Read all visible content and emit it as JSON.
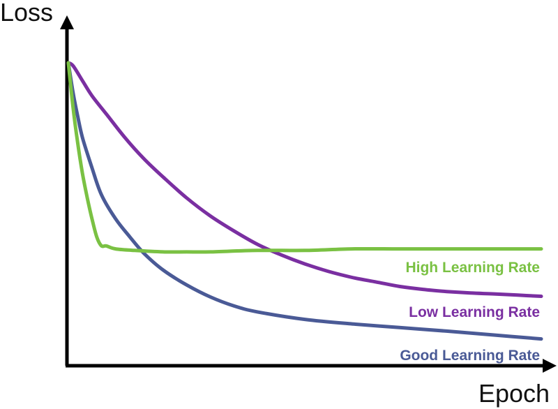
{
  "chart_data": {
    "type": "line",
    "title": "",
    "xlabel": "Epoch",
    "ylabel": "Loss",
    "xlim": [
      0,
      100
    ],
    "ylim": [
      0,
      100
    ],
    "grid": false,
    "axis_ticks": false,
    "series": [
      {
        "name": "High Learning Rate",
        "color": "#7ac143",
        "x": [
          0,
          1,
          2,
          3,
          4,
          5,
          6,
          7,
          8,
          10,
          14,
          20,
          25,
          30,
          40,
          50,
          60,
          70,
          80,
          90,
          100
        ],
        "y": [
          100,
          85,
          73,
          63,
          55,
          48,
          42,
          39,
          39,
          38,
          37.5,
          37,
          37,
          37,
          37.5,
          37.5,
          38,
          38,
          38,
          38,
          38
        ]
      },
      {
        "name": "Low Learning Rate",
        "color": "#7a2fa1",
        "x": [
          0,
          1,
          3,
          5,
          8,
          12,
          16,
          20,
          25,
          30,
          35,
          40,
          45,
          50,
          55,
          60,
          65,
          70,
          75,
          80,
          85,
          90,
          95,
          100
        ],
        "y": [
          100,
          99,
          94,
          89,
          83,
          75,
          68,
          62,
          55,
          49,
          44,
          39.5,
          36,
          33,
          30.5,
          28.5,
          27,
          25.5,
          24.5,
          23.8,
          23.3,
          23,
          22.6,
          22.2
        ]
      },
      {
        "name": "Good Learning Rate",
        "color": "#4a5a96",
        "x": [
          0,
          1,
          2,
          3,
          5,
          7,
          10,
          13,
          16,
          20,
          25,
          30,
          35,
          40,
          50,
          60,
          70,
          80,
          90,
          100
        ],
        "y": [
          100,
          90,
          82,
          75,
          65,
          56,
          48,
          42,
          36.5,
          31,
          26,
          22,
          19,
          17,
          14.5,
          13,
          11.8,
          10.6,
          9.3,
          8
        ]
      }
    ]
  }
}
